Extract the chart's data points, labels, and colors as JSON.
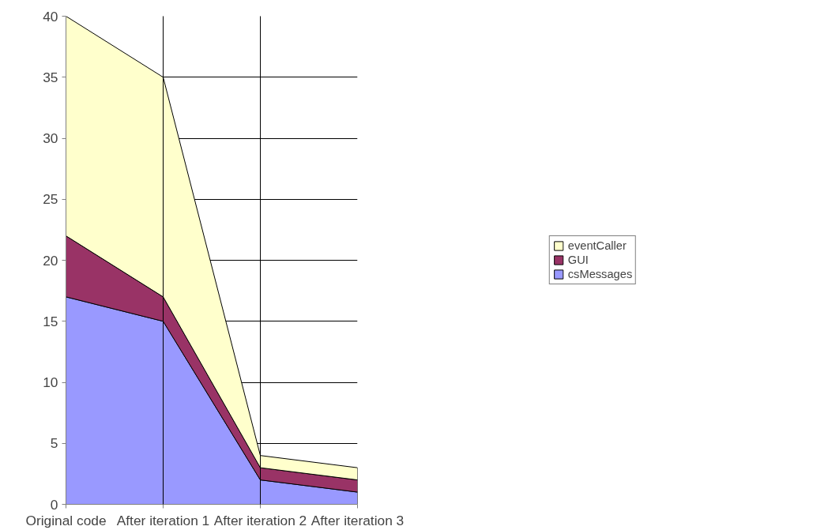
{
  "chart_data": {
    "type": "area",
    "stacked": true,
    "categories": [
      "Original code",
      "After iteration 1",
      "After iteration 2",
      "After iteration 3"
    ],
    "series": [
      {
        "name": "csMessages",
        "color": "#9999ff",
        "values": [
          17,
          15,
          2,
          1
        ]
      },
      {
        "name": "GUI",
        "color": "#993366",
        "values": [
          5,
          2,
          1,
          1
        ]
      },
      {
        "name": "eventCaller",
        "color": "#ffffcc",
        "values": [
          18,
          18,
          1,
          1
        ]
      }
    ],
    "ylim": [
      0,
      40
    ],
    "yticks": [
      0,
      5,
      10,
      15,
      20,
      25,
      30,
      35,
      40
    ],
    "grid": true,
    "legend": "right"
  }
}
